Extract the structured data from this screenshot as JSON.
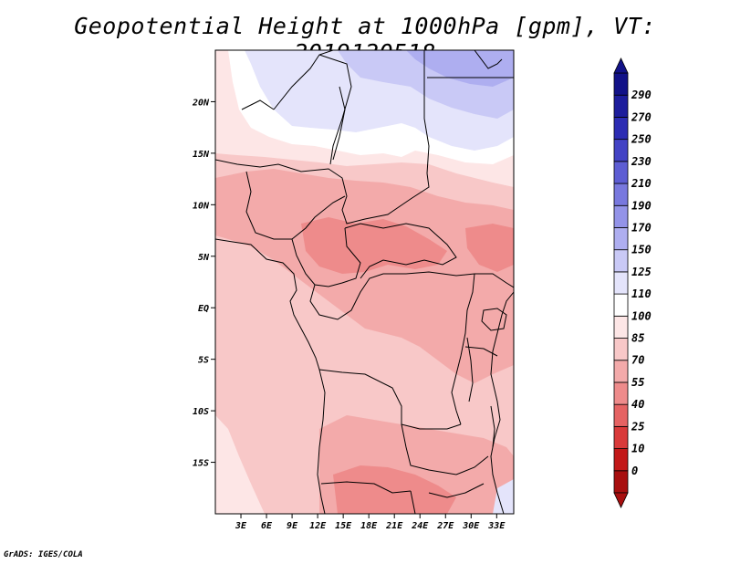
{
  "title": "Geopotential Height at 1000hPa [gpm], VT: 2019120518",
  "credit": "GrADS: IGES/COLA",
  "map": {
    "lon_range": [
      0,
      35
    ],
    "lat_range": [
      -20,
      25
    ],
    "lat_ticks": [
      {
        "value": 20,
        "label": "20N"
      },
      {
        "value": 15,
        "label": "15N"
      },
      {
        "value": 10,
        "label": "10N"
      },
      {
        "value": 5,
        "label": "5N"
      },
      {
        "value": 0,
        "label": "EQ"
      },
      {
        "value": -5,
        "label": "5S"
      },
      {
        "value": -10,
        "label": "10S"
      },
      {
        "value": -15,
        "label": "15S"
      }
    ],
    "lon_ticks": [
      {
        "value": 3,
        "label": "3E"
      },
      {
        "value": 6,
        "label": "6E"
      },
      {
        "value": 9,
        "label": "9E"
      },
      {
        "value": 12,
        "label": "12E"
      },
      {
        "value": 15,
        "label": "15E"
      },
      {
        "value": 18,
        "label": "18E"
      },
      {
        "value": 21,
        "label": "21E"
      },
      {
        "value": 24,
        "label": "24E"
      },
      {
        "value": 27,
        "label": "27E"
      },
      {
        "value": 30,
        "label": "30E"
      },
      {
        "value": 33,
        "label": "33E"
      }
    ]
  },
  "colorbar": {
    "levels": [
      "0",
      "10",
      "25",
      "40",
      "55",
      "70",
      "85",
      "100",
      "110",
      "125",
      "150",
      "170",
      "190",
      "210",
      "230",
      "250",
      "270",
      "290"
    ],
    "colors": [
      "#a80f0f",
      "#c21818",
      "#d93a3a",
      "#e56363",
      "#ee8b8b",
      "#f3aaaa",
      "#f8c8c8",
      "#fde6e6",
      "#ffffff",
      "#e4e4fb",
      "#c9c9f6",
      "#aeaef0",
      "#9393e8",
      "#7878de",
      "#5d5dd3",
      "#4343c5",
      "#2c2cb3",
      "#1d1d9c",
      "#121288"
    ]
  }
}
